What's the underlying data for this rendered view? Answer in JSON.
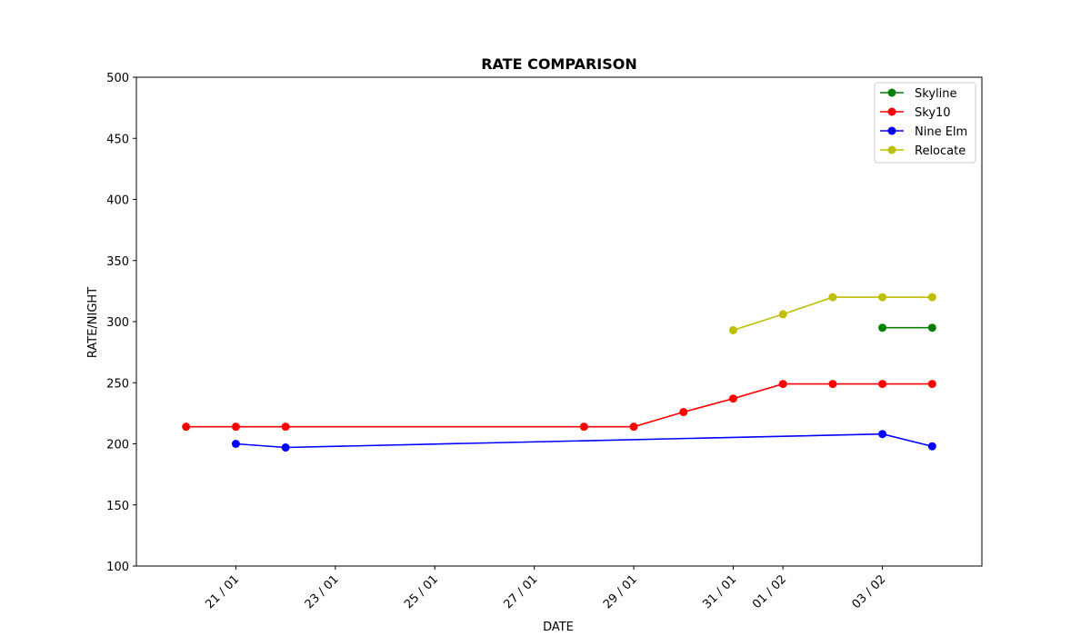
{
  "chart_data": {
    "type": "line",
    "title": "RATE COMPARISON",
    "xlabel": "DATE",
    "ylabel": "RATE/NIGHT",
    "ylim": [
      100,
      500
    ],
    "yticks": [
      100,
      150,
      200,
      250,
      300,
      350,
      400,
      450,
      500
    ],
    "xlim": [
      "2024-01-19",
      "2024-02-05"
    ],
    "xticks": [
      {
        "date": "2024-01-21",
        "label": "21 / 01"
      },
      {
        "date": "2024-01-23",
        "label": "23 / 01"
      },
      {
        "date": "2024-01-25",
        "label": "25 / 01"
      },
      {
        "date": "2024-01-27",
        "label": "27 / 01"
      },
      {
        "date": "2024-01-29",
        "label": "29 / 01"
      },
      {
        "date": "2024-01-31",
        "label": "31 / 01"
      },
      {
        "date": "2024-02-01",
        "label": "01 / 02"
      },
      {
        "date": "2024-02-03",
        "label": "03 / 02"
      }
    ],
    "grid": false,
    "legend": "top-right",
    "series": [
      {
        "name": "Skyline",
        "color": "#008000",
        "points": [
          {
            "x": "2024-02-03",
            "y": 295
          },
          {
            "x": "2024-02-04",
            "y": 295
          }
        ]
      },
      {
        "name": "Sky10",
        "color": "#ff0000",
        "points": [
          {
            "x": "2024-01-20",
            "y": 214
          },
          {
            "x": "2024-01-21",
            "y": 214
          },
          {
            "x": "2024-01-22",
            "y": 214
          },
          {
            "x": "2024-01-28",
            "y": 214
          },
          {
            "x": "2024-01-29",
            "y": 214
          },
          {
            "x": "2024-01-30",
            "y": 226
          },
          {
            "x": "2024-01-31",
            "y": 237
          },
          {
            "x": "2024-02-01",
            "y": 249
          },
          {
            "x": "2024-02-02",
            "y": 249
          },
          {
            "x": "2024-02-03",
            "y": 249
          },
          {
            "x": "2024-02-04",
            "y": 249
          }
        ]
      },
      {
        "name": "Nine Elm",
        "color": "#0000ff",
        "points": [
          {
            "x": "2024-01-21",
            "y": 200
          },
          {
            "x": "2024-01-22",
            "y": 197
          },
          {
            "x": "2024-02-03",
            "y": 208
          },
          {
            "x": "2024-02-04",
            "y": 198
          }
        ]
      },
      {
        "name": "Relocate",
        "color": "#bfbf00",
        "points": [
          {
            "x": "2024-01-31",
            "y": 293
          },
          {
            "x": "2024-02-01",
            "y": 306
          },
          {
            "x": "2024-02-02",
            "y": 320
          },
          {
            "x": "2024-02-03",
            "y": 320
          },
          {
            "x": "2024-02-04",
            "y": 320
          }
        ]
      }
    ]
  }
}
